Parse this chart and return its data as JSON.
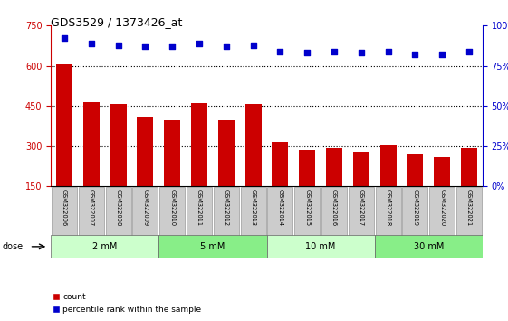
{
  "title": "GDS3529 / 1373426_at",
  "categories": [
    "GSM322006",
    "GSM322007",
    "GSM322008",
    "GSM322009",
    "GSM322010",
    "GSM322011",
    "GSM322012",
    "GSM322013",
    "GSM322014",
    "GSM322015",
    "GSM322016",
    "GSM322017",
    "GSM322018",
    "GSM322019",
    "GSM322020",
    "GSM322021"
  ],
  "counts": [
    605,
    465,
    455,
    410,
    400,
    460,
    400,
    455,
    315,
    287,
    295,
    278,
    302,
    270,
    258,
    293
  ],
  "percentiles": [
    92,
    89,
    88,
    87,
    87,
    89,
    87,
    88,
    84,
    83,
    84,
    83,
    84,
    82,
    82,
    84
  ],
  "ylim_left": [
    150,
    750
  ],
  "ylim_right": [
    0,
    100
  ],
  "yticks_left": [
    150,
    300,
    450,
    600,
    750
  ],
  "yticks_right": [
    0,
    25,
    50,
    75,
    100
  ],
  "bar_color": "#cc0000",
  "dot_color": "#0000cc",
  "bg_plot": "#ffffff",
  "dose_groups": [
    {
      "label": "2 mM",
      "start": 0,
      "end": 4,
      "color": "#ccffcc"
    },
    {
      "label": "5 mM",
      "start": 4,
      "end": 8,
      "color": "#88ee88"
    },
    {
      "label": "10 mM",
      "start": 8,
      "end": 12,
      "color": "#ccffcc"
    },
    {
      "label": "30 mM",
      "start": 12,
      "end": 16,
      "color": "#88ee88"
    }
  ],
  "legend_count_label": "count",
  "legend_pct_label": "percentile rank within the sample",
  "xlabel_dose": "dose"
}
